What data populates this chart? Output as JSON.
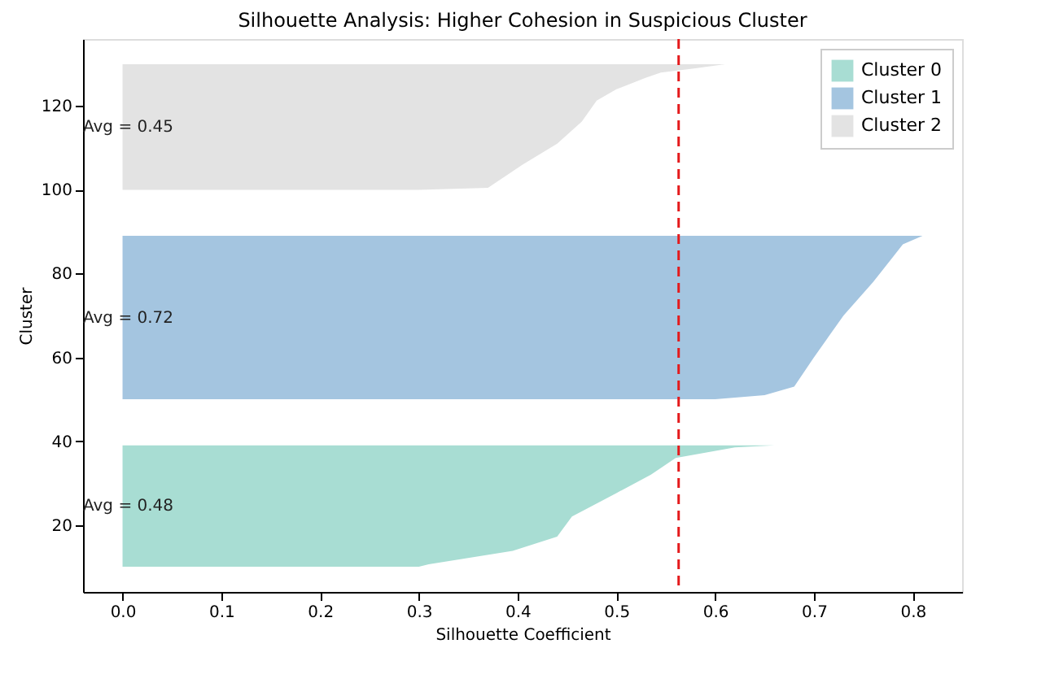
{
  "chart_data": {
    "type": "area",
    "orientation": "horizontal",
    "title": "Silhouette Analysis: Higher Cohesion in Suspicious Cluster",
    "xlabel": "Silhouette Coefficient",
    "ylabel": "Cluster",
    "series": [
      {
        "name": "Cluster 0",
        "color": "#a8ddd3",
        "x": [
          10,
          10.6,
          13.8,
          17.2,
          22,
          24.5,
          27.6,
          32,
          36,
          38.5,
          39
        ],
        "values": [
          0.3,
          0.31,
          0.395,
          0.44,
          0.455,
          0.475,
          0.5,
          0.535,
          0.56,
          0.62,
          0.66
        ]
      },
      {
        "name": "Cluster 1",
        "color": "#a4c5e0",
        "x": [
          50,
          51,
          53,
          60,
          70,
          78,
          84,
          87,
          89
        ],
        "values": [
          0.6,
          0.65,
          0.68,
          0.7,
          0.73,
          0.76,
          0.78,
          0.79,
          0.81
        ]
      },
      {
        "name": "Cluster 2",
        "color": "#e3e3e3",
        "x": [
          100,
          100.5,
          106,
          111,
          116.3,
          121.3,
          124,
          126.8,
          128,
          129,
          130
        ],
        "values": [
          0.3,
          0.37,
          0.405,
          0.44,
          0.465,
          0.48,
          0.5,
          0.53,
          0.545,
          0.58,
          0.61
        ]
      }
    ],
    "annotations": [
      "Avg = 0.48",
      "Avg = 0.72",
      "Avg = 0.45"
    ],
    "ref_lines": [
      {
        "axis": "x",
        "value": 0.563,
        "color": "#e41a1c",
        "line_style": "dashed"
      }
    ],
    "xlim": [
      -0.04,
      0.85
    ],
    "xticks": [
      {
        "value": 0,
        "label": "0.0"
      },
      0.1,
      0.2,
      0.3,
      0.4,
      0.5,
      0.6,
      0.7,
      0.8
    ],
    "ylim": [
      4,
      136
    ],
    "yticks": [
      20,
      40,
      60,
      80,
      100,
      120
    ],
    "grid": false,
    "legend": "top right"
  }
}
